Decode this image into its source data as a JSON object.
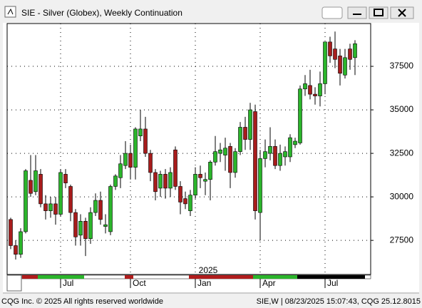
{
  "chart_data": {
    "type": "candlestick",
    "title": "SIE - Silver (Globex), Weekly Continuation",
    "categories": [
      null,
      null,
      null,
      null,
      null,
      null,
      null,
      null,
      null,
      null,
      "Jul",
      null,
      null,
      null,
      null,
      null,
      null,
      null,
      null,
      null,
      null,
      null,
      null,
      null,
      "Oct",
      null,
      null,
      null,
      null,
      null,
      null,
      null,
      null,
      null,
      null,
      null,
      null,
      "Jan",
      null,
      null,
      null,
      null,
      null,
      null,
      null,
      null,
      null,
      null,
      null,
      null,
      "Apr",
      null,
      null,
      null,
      null,
      null,
      null,
      null,
      null,
      null,
      null,
      null,
      null,
      "Jul",
      null,
      null,
      null,
      null,
      null,
      null
    ],
    "open": [
      28700,
      27200,
      26700,
      28000,
      30950,
      30300,
      31300,
      29600,
      29200,
      29600,
      29000,
      31300,
      30600,
      29100,
      27800,
      28600,
      27600,
      29100,
      29800,
      28300,
      28000,
      30600,
      31100,
      31800,
      32500,
      31700,
      33500,
      33900,
      32500,
      31400,
      30500,
      31300,
      30500,
      32700,
      30600,
      29900,
      29200,
      30100,
      31300,
      30900,
      31000,
      32000,
      32500,
      32400,
      32900,
      31400,
      32600,
      34000,
      33300,
      34900,
      29100,
      32200,
      32500,
      32900,
      31800,
      32300,
      32300,
      33000,
      33100,
      36200,
      36400,
      35900,
      35800,
      36500,
      38900,
      38500,
      38100,
      37000,
      38500,
      38000
    ],
    "high": [
      28800,
      27500,
      28200,
      31600,
      32400,
      32400,
      31600,
      30100,
      30000,
      30000,
      31600,
      31600,
      30700,
      29300,
      29000,
      28800,
      29400,
      30200,
      30300,
      29000,
      30700,
      31300,
      32400,
      33200,
      33000,
      34000,
      35000,
      34600,
      32700,
      31600,
      31500,
      31600,
      31700,
      32900,
      30900,
      30300,
      30400,
      31700,
      31800,
      31400,
      32100,
      33500,
      33100,
      33400,
      33100,
      32800,
      34300,
      34600,
      35400,
      35300,
      32700,
      33300,
      34000,
      33300,
      33000,
      32900,
      33600,
      33400,
      36400,
      37000,
      37300,
      36300,
      37200,
      38900,
      39200,
      39500,
      38500,
      38500,
      38800,
      39000
    ],
    "low": [
      27000,
      26400,
      26500,
      27900,
      30000,
      30100,
      29400,
      28700,
      28800,
      28400,
      28900,
      30500,
      28600,
      27200,
      27200,
      26600,
      27300,
      28900,
      28400,
      27900,
      27800,
      30400,
      30500,
      31600,
      31000,
      31000,
      33200,
      32300,
      30900,
      29800,
      30000,
      29900,
      30000,
      30400,
      29000,
      29300,
      28900,
      29900,
      30500,
      30100,
      29800,
      31800,
      32000,
      31500,
      30500,
      31100,
      32400,
      32700,
      32700,
      28700,
      27500,
      31700,
      32100,
      31600,
      31500,
      31800,
      32000,
      32800,
      33000,
      35800,
      35600,
      35300,
      35200,
      35900,
      37700,
      37400,
      36400,
      36800,
      37300,
      37000
    ],
    "close": [
      27200,
      26700,
      28000,
      31500,
      30200,
      31500,
      29600,
      29200,
      29600,
      29000,
      31400,
      30800,
      29100,
      27700,
      28600,
      27600,
      29100,
      29800,
      28700,
      28400,
      30600,
      31200,
      31900,
      32500,
      31700,
      33900,
      33900,
      32500,
      31400,
      30300,
      31300,
      30500,
      31400,
      30600,
      29700,
      29600,
      30100,
      31300,
      31100,
      31000,
      32000,
      32600,
      32700,
      32800,
      31400,
      32600,
      34000,
      33300,
      35000,
      29200,
      32200,
      32600,
      32900,
      31800,
      32500,
      32600,
      33400,
      33200,
      36200,
      36500,
      35900,
      35800,
      36500,
      38900,
      38100,
      37900,
      37100,
      38000,
      37900,
      38800
    ],
    "up_color": "#2bb52b",
    "down_color": "#a81c1c",
    "ylim": [
      25540,
      39960
    ],
    "yticks": [
      27500,
      30000,
      32500,
      35000,
      37500
    ],
    "grid": true,
    "year_label": "2025"
  },
  "footer": {
    "left": "CQG Inc. © 2025 All rights reserved worldwide",
    "right": "SIE,W | 08/23/2025 15:07:43, CQG 25.12.8015"
  }
}
